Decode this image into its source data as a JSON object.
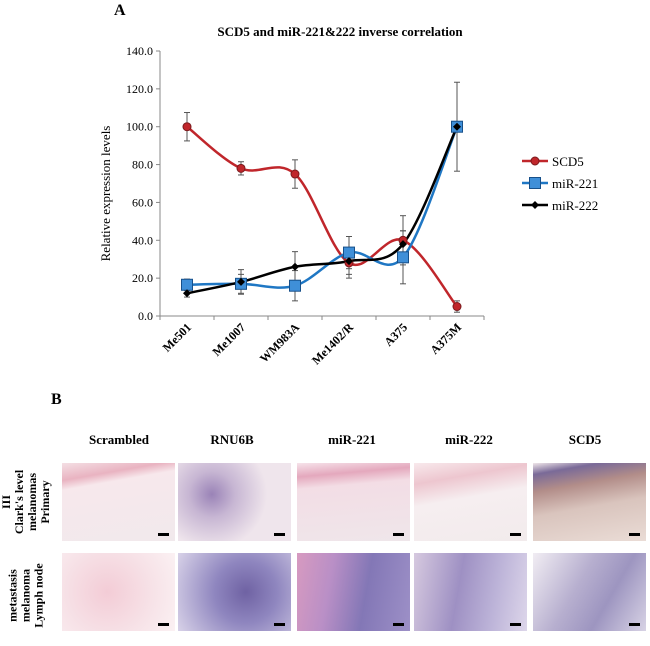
{
  "panel_a": {
    "letter": "A"
  },
  "panel_b": {
    "letter": "B",
    "columns": [
      "Scrambled",
      "RNU6B",
      "miR-221",
      "miR-222",
      "SCD5"
    ],
    "rows": [
      {
        "label_lines": [
          "III",
          "Clark's level",
          "melanomas",
          "Primary"
        ]
      },
      {
        "label_lines": [
          "metastasis",
          "melanoma",
          "Lymph node"
        ]
      }
    ]
  },
  "colors": {
    "scd5": "#c0262b",
    "mir221": "#1f77c4",
    "mir222": "#000000"
  },
  "chart_data": {
    "type": "line",
    "title": "SCD5 and miR-221&222 inverse correlation",
    "xlabel": "",
    "ylabel": "Relative expression levels",
    "categories": [
      "Me501",
      "Me1007",
      "WM983A",
      "Me1402/R",
      "A375",
      "A375M"
    ],
    "ylim": [
      0,
      140
    ],
    "yticks": [
      "0.0",
      "20.0",
      "40.0",
      "60.0",
      "80.0",
      "100.0",
      "120.0",
      "140.0"
    ],
    "legend_position": "right",
    "series": [
      {
        "name": "SCD5",
        "values": [
          100,
          78,
          75,
          28,
          40,
          5
        ],
        "errors": [
          7.5,
          3.5,
          7.5,
          8,
          13,
          3
        ],
        "marker": "circle"
      },
      {
        "name": "miR-221",
        "values": [
          16.5,
          17,
          16,
          33.5,
          31,
          100
        ],
        "errors": [
          3,
          5,
          8,
          8.5,
          14,
          23.5
        ],
        "marker": "square"
      },
      {
        "name": "miR-222",
        "values": [
          12,
          18,
          26,
          29,
          38,
          100
        ],
        "errors": [
          2,
          6.5,
          8,
          7,
          7,
          2
        ],
        "marker": "diamond"
      }
    ]
  }
}
